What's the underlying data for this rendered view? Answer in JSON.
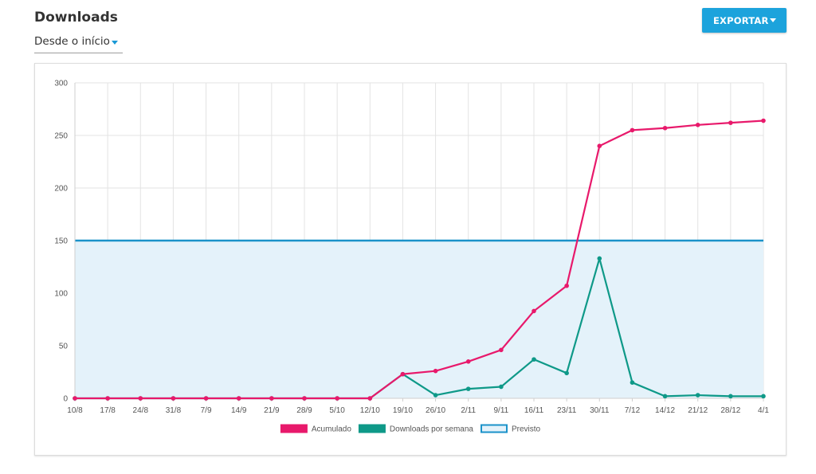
{
  "header": {
    "title": "Downloads",
    "range_select_value": "Desde o início",
    "export_label": "EXPORTAR"
  },
  "colors": {
    "accent": "#1ca3dc",
    "cumulative": "#e8196b",
    "weekly": "#0e9988",
    "forecast_line": "#1a92c9",
    "forecast_fill": "#e4f2fa"
  },
  "chart_data": {
    "type": "line",
    "title": "",
    "xlabel": "",
    "ylabel": "",
    "categories": [
      "10/8",
      "17/8",
      "24/8",
      "31/8",
      "7/9",
      "14/9",
      "21/9",
      "28/9",
      "5/10",
      "12/10",
      "19/10",
      "26/10",
      "2/11",
      "9/11",
      "16/11",
      "23/11",
      "30/11",
      "7/12",
      "14/12",
      "21/12",
      "28/12",
      "4/1"
    ],
    "ylim": [
      0,
      300
    ],
    "yticks": [
      0,
      50,
      100,
      150,
      200,
      250,
      300
    ],
    "grid": true,
    "legend_position": "bottom",
    "series": [
      {
        "name": "Acumulado",
        "kind": "line",
        "color": "#e8196b",
        "values": [
          0,
          0,
          0,
          0,
          0,
          0,
          0,
          0,
          0,
          0,
          23,
          26,
          35,
          46,
          83,
          107,
          240,
          255,
          257,
          260,
          262,
          264
        ]
      },
      {
        "name": "Downloads por semana",
        "kind": "line",
        "color": "#0e9988",
        "values": [
          0,
          0,
          0,
          0,
          0,
          0,
          0,
          0,
          0,
          0,
          23,
          3,
          9,
          11,
          37,
          24,
          133,
          15,
          2,
          3,
          2,
          2
        ]
      },
      {
        "name": "Previsto",
        "kind": "area",
        "color": "#1a92c9",
        "values": [
          150,
          150,
          150,
          150,
          150,
          150,
          150,
          150,
          150,
          150,
          150,
          150,
          150,
          150,
          150,
          150,
          150,
          150,
          150,
          150,
          150,
          150
        ]
      }
    ]
  }
}
